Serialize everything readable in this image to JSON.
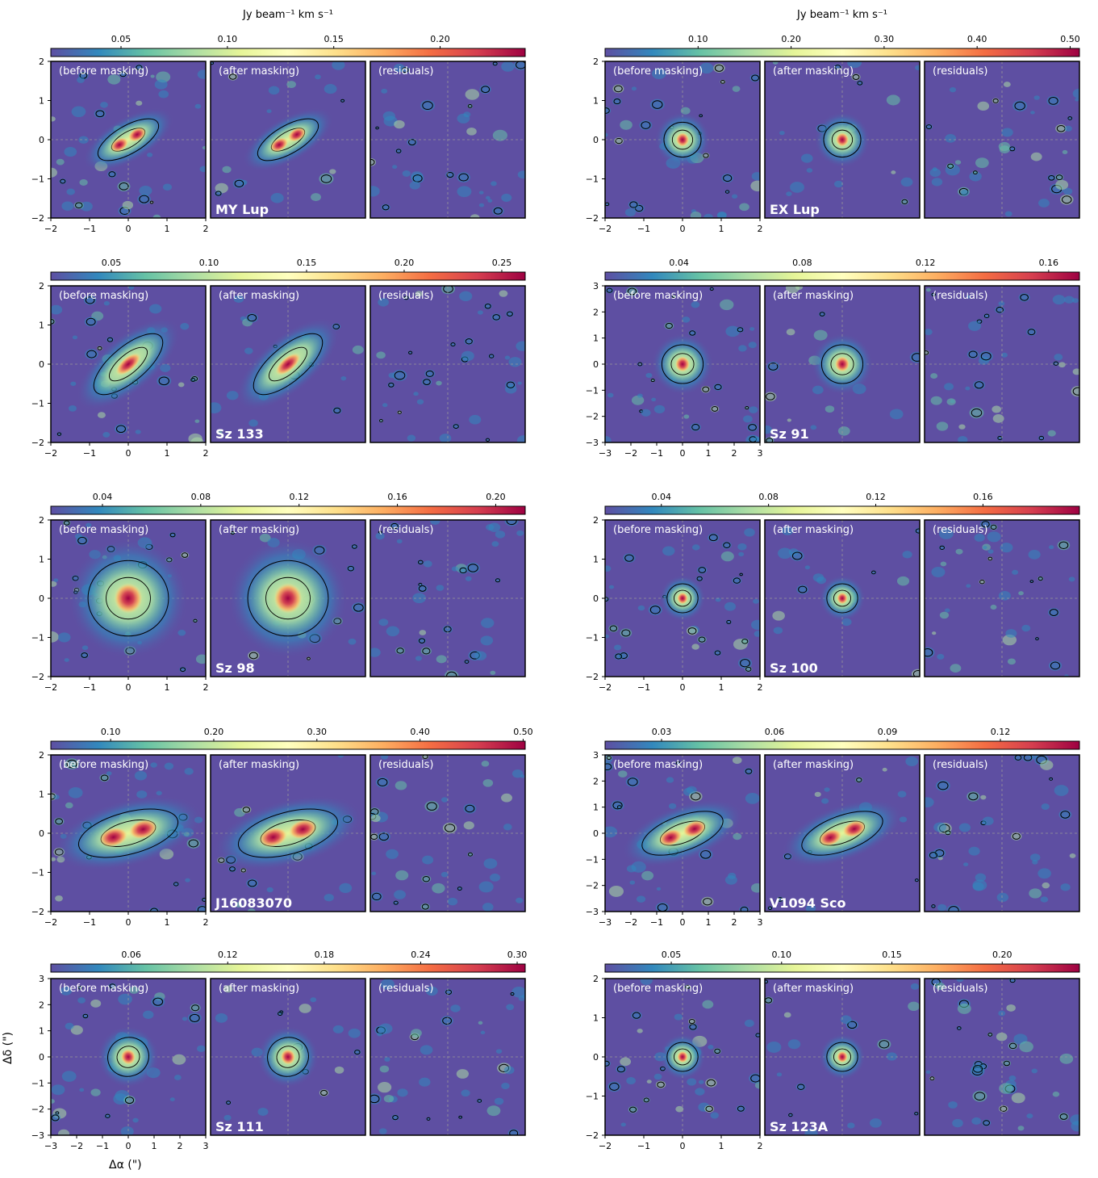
{
  "colorbar_unit": "Jy beam⁻¹ km s⁻¹",
  "panel_titles": [
    "(before masking)",
    "(after masking)",
    "(residuals)"
  ],
  "axis_labels": {
    "x": "Δα (\")",
    "y": "Δδ (\")"
  },
  "colormap": [
    "#5e4fa2",
    "#3288bd",
    "#66c2a5",
    "#abdda4",
    "#e6f598",
    "#ffffbf",
    "#fee08b",
    "#fdae61",
    "#f46d43",
    "#d53e4f",
    "#9e0142"
  ],
  "background_color": "#5e4fa2",
  "chart_data": [
    {
      "type": "heatmap",
      "source": "MY Lup",
      "colorbar_ticks": [
        "0.05",
        "0.10",
        "0.15",
        "0.20"
      ],
      "vmin": 0.017,
      "vmax": 0.24,
      "extent": [
        -2,
        2
      ],
      "axis_ticks": [
        "−2",
        "−1",
        "0",
        "1",
        "2"
      ],
      "show_unit": true,
      "morphology": {
        "shape": "elongated",
        "pa": 30,
        "size": 0.8,
        "peaks": 2
      }
    },
    {
      "type": "heatmap",
      "source": "EX Lup",
      "colorbar_ticks": [
        "0.10",
        "0.20",
        "0.30",
        "0.40",
        "0.50"
      ],
      "vmin": 0.0,
      "vmax": 0.51,
      "extent": [
        -2,
        2
      ],
      "axis_ticks": [
        "−2",
        "−1",
        "0",
        "1",
        "2"
      ],
      "show_unit": true,
      "morphology": {
        "shape": "compact",
        "pa": 0,
        "size": 0.6,
        "peaks": 1
      }
    },
    {
      "type": "heatmap",
      "source": "Sz 133",
      "colorbar_ticks": [
        "0.05",
        "0.10",
        "0.15",
        "0.20",
        "0.25"
      ],
      "vmin": 0.019,
      "vmax": 0.262,
      "extent": [
        -2,
        2
      ],
      "axis_ticks": [
        "−2",
        "−1",
        "0",
        "1",
        "2"
      ],
      "show_unit": false,
      "morphology": {
        "shape": "elongated",
        "pa": 40,
        "size": 1.0,
        "peaks": 1
      }
    },
    {
      "type": "heatmap",
      "source": "Sz 91",
      "colorbar_ticks": [
        "0.04",
        "0.08",
        "0.12",
        "0.16"
      ],
      "vmin": 0.016,
      "vmax": 0.17,
      "extent": [
        -3,
        3
      ],
      "axis_ticks": [
        "−3",
        "−2",
        "−1",
        "0",
        "1",
        "2",
        "3"
      ],
      "show_unit": false,
      "morphology": {
        "shape": "ring",
        "pa": 0,
        "size": 1.0,
        "peaks": 1
      }
    },
    {
      "type": "heatmap",
      "source": "Sz 98",
      "colorbar_ticks": [
        "0.04",
        "0.08",
        "0.12",
        "0.16",
        "0.20"
      ],
      "vmin": 0.019,
      "vmax": 0.212,
      "extent": [
        -2,
        2
      ],
      "axis_ticks": [
        "−2",
        "−1",
        "0",
        "1",
        "2"
      ],
      "show_unit": false,
      "morphology": {
        "shape": "extended",
        "pa": 0,
        "size": 1.3,
        "peaks": 1
      }
    },
    {
      "type": "heatmap",
      "source": "Sz 100",
      "colorbar_ticks": [
        "0.04",
        "0.08",
        "0.12",
        "0.16"
      ],
      "vmin": 0.019,
      "vmax": 0.196,
      "extent": [
        -2,
        2
      ],
      "axis_ticks": [
        "−2",
        "−1",
        "0",
        "1",
        "2"
      ],
      "show_unit": false,
      "morphology": {
        "shape": "compact",
        "pa": 0,
        "size": 0.5,
        "peaks": 1
      }
    },
    {
      "type": "heatmap",
      "source": "J16083070",
      "colorbar_ticks": [
        "0.10",
        "0.20",
        "0.30",
        "0.40",
        "0.50"
      ],
      "vmin": 0.042,
      "vmax": 0.502,
      "extent": [
        -2,
        2
      ],
      "axis_ticks": [
        "−2",
        "−1",
        "0",
        "1",
        "2"
      ],
      "show_unit": false,
      "morphology": {
        "shape": "elongated",
        "pa": 15,
        "size": 1.2,
        "peaks": 2
      }
    },
    {
      "type": "heatmap",
      "source": "V1094 Sco",
      "colorbar_ticks": [
        "0.03",
        "0.06",
        "0.09",
        "0.12"
      ],
      "vmin": 0.015,
      "vmax": 0.141,
      "extent": [
        -3,
        3
      ],
      "axis_ticks": [
        "−3",
        "−2",
        "−1",
        "0",
        "1",
        "2",
        "3"
      ],
      "show_unit": false,
      "morphology": {
        "shape": "elongated",
        "pa": 20,
        "size": 1.5,
        "peaks": 2
      }
    },
    {
      "type": "heatmap",
      "source": "Sz 111",
      "colorbar_ticks": [
        "0.06",
        "0.12",
        "0.18",
        "0.24",
        "0.30"
      ],
      "vmin": 0.01,
      "vmax": 0.305,
      "extent": [
        -3,
        3
      ],
      "axis_ticks": [
        "−3",
        "−2",
        "−1",
        "0",
        "1",
        "2",
        "3"
      ],
      "show_unit": false,
      "morphology": {
        "shape": "compact",
        "pa": 20,
        "size": 1.0,
        "peaks": 1
      }
    },
    {
      "type": "heatmap",
      "source": "Sz 123A",
      "colorbar_ticks": [
        "0.05",
        "0.10",
        "0.15",
        "0.20"
      ],
      "vmin": 0.02,
      "vmax": 0.235,
      "extent": [
        -2,
        2
      ],
      "axis_ticks": [
        "−2",
        "−1",
        "0",
        "1",
        "2"
      ],
      "show_unit": false,
      "morphology": {
        "shape": "compact",
        "pa": 0,
        "size": 0.5,
        "peaks": 1
      }
    }
  ]
}
